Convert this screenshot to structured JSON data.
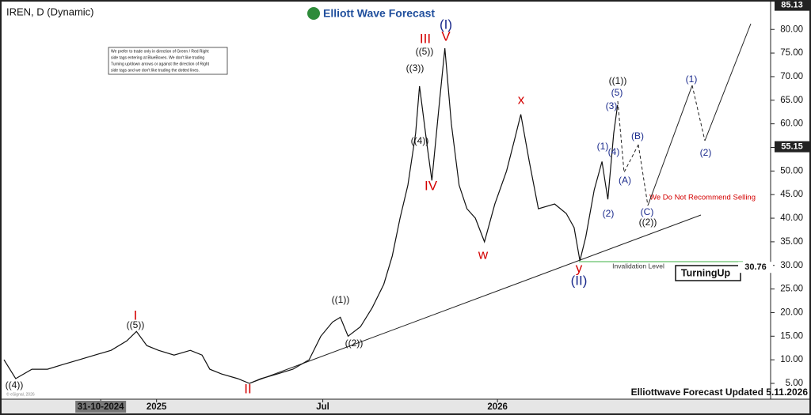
{
  "chart_data": {
    "type": "line",
    "title": "IREN, D (Dynamic)",
    "brand": "Elliott Wave Forecast",
    "footer": "Elliottwave Forecast Updated 5.11.2026",
    "copyright": "© eSignal, 2026",
    "note": [
      "We prefer to trade only in direction of Green / Red Right",
      "side tags entering at BlueBoxes. We don't like trading",
      "Turning up/down arrows or against the direction of Right",
      "side tags and we don't like trading the dotted lines."
    ],
    "warning": "We Do Not Recommend Selling",
    "invalidation_label": "Invalidation Level",
    "badge": "TurningUp",
    "series": [
      {
        "color": "#111111",
        "x": [
          0,
          1.8,
          4.3,
          6.7,
          9.1,
          11.6,
          14,
          16.5,
          18.9,
          20.4,
          22,
          23.8,
          26.2,
          28.7,
          30.5,
          31.7,
          33.5,
          36,
          37.8,
          39.6,
          42.1,
          44.5,
          47,
          48.8,
          50.6,
          51.8,
          53,
          54.9,
          56.7,
          58.5,
          59.8,
          61,
          62.2,
          63.4,
          64,
          65.2,
          65.9,
          67.1,
          67.9,
          68.9,
          70.1,
          71.3,
          72.6,
          74,
          75.6,
          77.4,
          78.7,
          79.6,
          80.9,
          82.3,
          84.8,
          86.6,
          87.8,
          88.7,
          89.6,
          90.9,
          92.1,
          93,
          93.9,
          94.5
        ],
        "values": [
          10,
          6,
          8,
          8,
          9,
          10,
          11,
          12,
          14,
          16,
          13,
          12,
          11,
          12,
          11,
          8,
          7,
          6,
          5,
          6,
          7,
          8,
          10,
          15,
          18,
          19,
          15,
          17,
          21,
          26,
          32,
          40,
          47,
          58,
          68,
          55,
          48,
          65,
          76,
          60,
          47,
          42,
          40,
          35,
          43,
          50,
          57,
          62,
          52,
          42,
          43,
          41,
          38,
          31,
          36,
          46,
          52,
          44,
          58,
          64
        ]
      }
    ],
    "price_labels": [
      {
        "value": 85.13,
        "label": "85.13"
      },
      {
        "value": 55.15,
        "label": "55.15"
      },
      {
        "value": 30.76,
        "label": "30.76"
      }
    ],
    "annotations": [
      {
        "text": "((4))",
        "color": "#111111"
      },
      {
        "text": "I",
        "color": "#d40000"
      },
      {
        "text": "((5))",
        "color": "#111111"
      },
      {
        "text": "II",
        "color": "#d40000"
      },
      {
        "text": "((1))",
        "color": "#111111"
      },
      {
        "text": "((2))",
        "color": "#111111"
      },
      {
        "text": "((3))",
        "color": "#111111"
      },
      {
        "text": "((5))",
        "color": "#111111"
      },
      {
        "text": "III",
        "color": "#d40000"
      },
      {
        "text": "V",
        "color": "#d40000"
      },
      {
        "text": "(I)",
        "color": "#1a2a8c"
      },
      {
        "text": "((4))",
        "color": "#111111"
      },
      {
        "text": "IV",
        "color": "#d40000"
      },
      {
        "text": "w",
        "color": "#d40000"
      },
      {
        "text": "x",
        "color": "#d40000"
      },
      {
        "text": "y",
        "color": "#d40000"
      },
      {
        "text": "(II)",
        "color": "#1a2a8c"
      },
      {
        "text": "((1))",
        "color": "#111111"
      },
      {
        "text": "(5)",
        "color": "#1a2a8c"
      },
      {
        "text": "(3)",
        "color": "#1a2a8c"
      },
      {
        "text": "(1)",
        "color": "#1a2a8c"
      },
      {
        "text": "(4)",
        "color": "#1a2a8c"
      },
      {
        "text": "(2)",
        "color": "#1a2a8c"
      },
      {
        "text": "(A)",
        "color": "#1a2a8c"
      },
      {
        "text": "(B)",
        "color": "#1a2a8c"
      },
      {
        "text": "(C)",
        "color": "#1a2a8c"
      },
      {
        "text": "((2))",
        "color": "#111111"
      },
      {
        "text": "(1)",
        "color": "#1a2a8c"
      },
      {
        "text": "(2)",
        "color": "#1a2a8c"
      }
    ],
    "xlim": [
      0,
      117.7
    ],
    "xticks": [
      {
        "value": 14.9,
        "label": "31-10-2024"
      },
      {
        "value": 23.5,
        "label": "2025"
      },
      {
        "value": 49.1,
        "label": "Jul"
      },
      {
        "value": 76,
        "label": "2026"
      }
    ],
    "ylim": [
      1.65,
      85.4
    ],
    "yticks": [
      {
        "value": 5,
        "label": "5.00"
      },
      {
        "value": 10,
        "label": "10.00"
      },
      {
        "value": 15,
        "label": "15.00"
      },
      {
        "value": 20,
        "label": "20.00"
      },
      {
        "value": 25,
        "label": "25.00"
      },
      {
        "value": 30,
        "label": "30.00"
      },
      {
        "value": 35,
        "label": "35.00"
      },
      {
        "value": 40,
        "label": "40.00"
      },
      {
        "value": 45,
        "label": "45.00"
      },
      {
        "value": 50,
        "label": "50.00"
      },
      {
        "value": 55,
        "label": "55.00"
      },
      {
        "value": 60,
        "label": "60.00"
      },
      {
        "value": 65,
        "label": "65.00"
      },
      {
        "value": 70,
        "label": "70.00"
      },
      {
        "value": 75,
        "label": "75.00"
      },
      {
        "value": 80,
        "label": "80.00"
      }
    ]
  }
}
